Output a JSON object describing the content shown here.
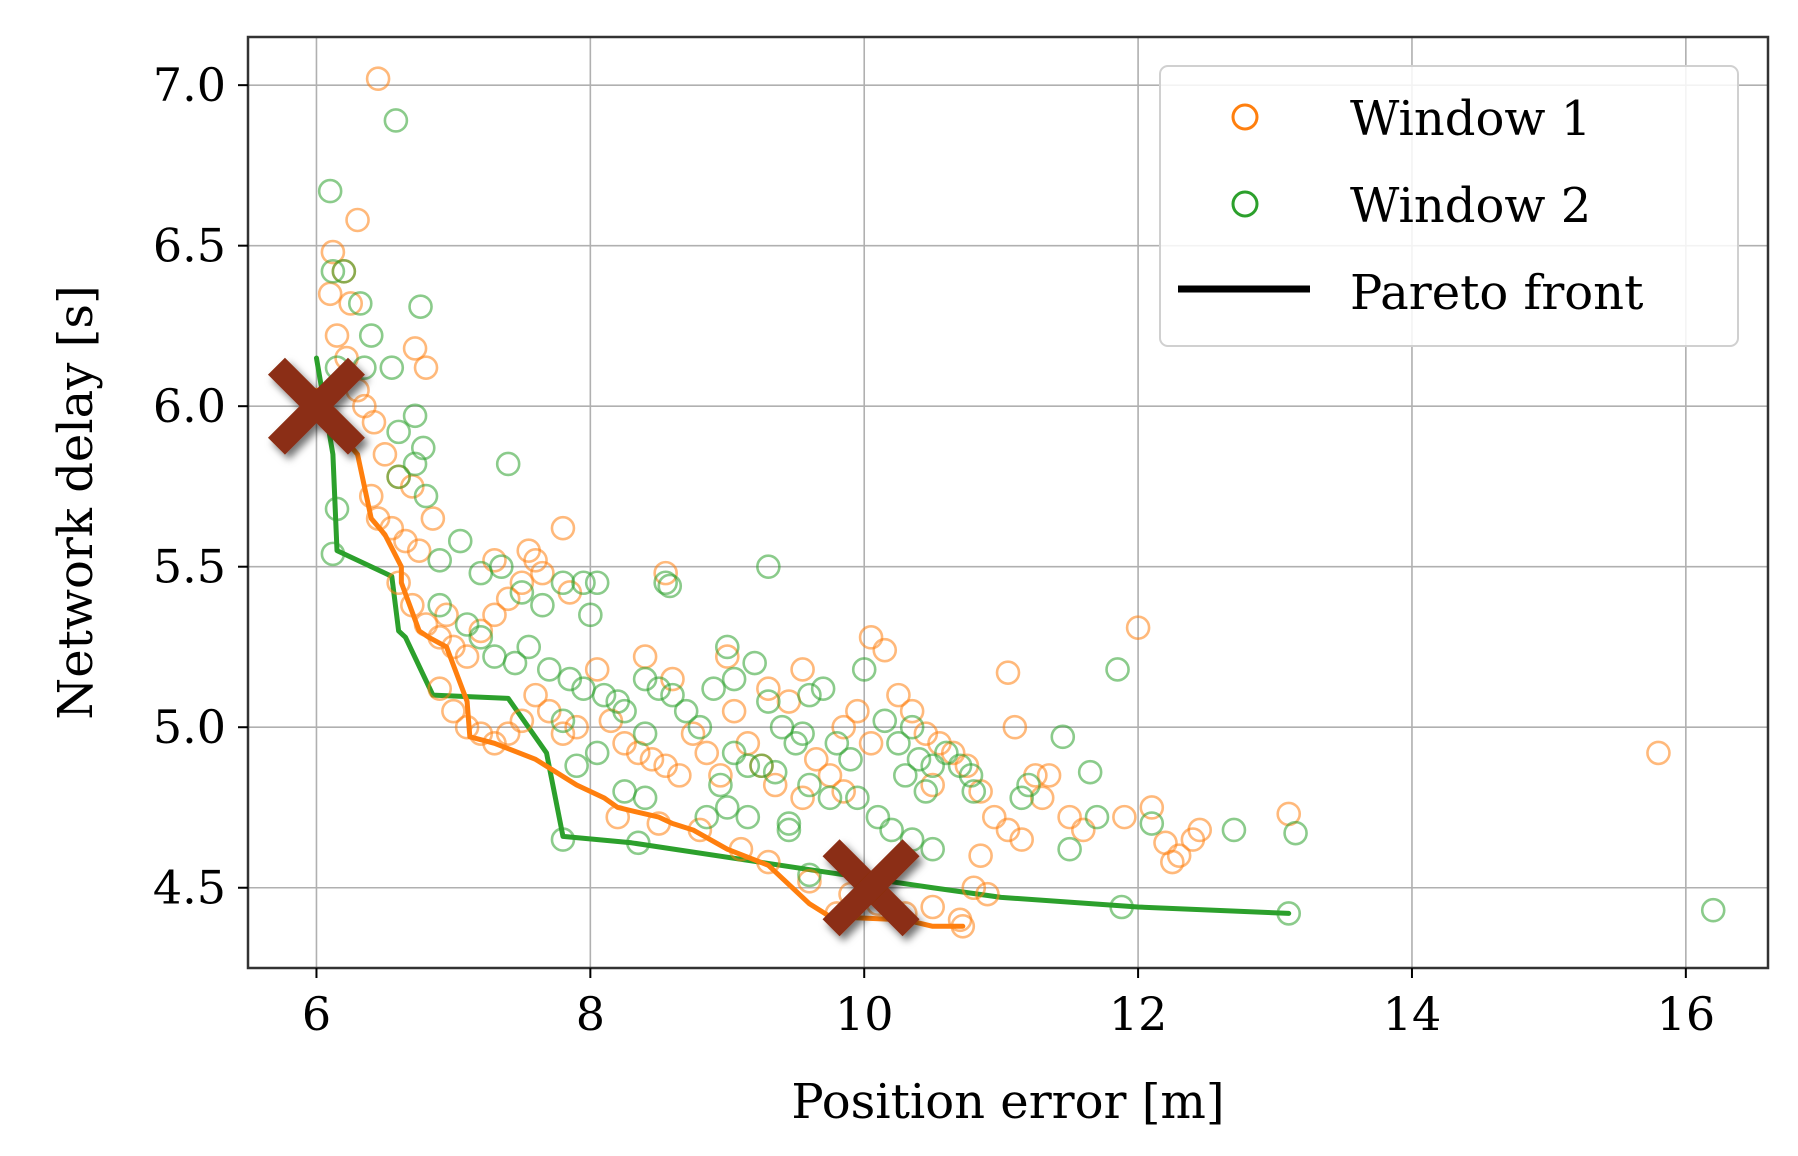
{
  "chart_data": {
    "type": "scatter",
    "xlabel": "Position error [m]",
    "ylabel": "Network delay [s]",
    "xlim": [
      5.5,
      16.6
    ],
    "ylim": [
      4.25,
      7.15
    ],
    "xticks": [
      6,
      8,
      10,
      12,
      14,
      16
    ],
    "yticks": [
      4.5,
      5.0,
      5.5,
      6.0,
      6.5,
      7.0
    ],
    "xtick_labels": [
      "6",
      "8",
      "10",
      "12",
      "14",
      "16"
    ],
    "ytick_labels": [
      "4.5",
      "5.0",
      "5.5",
      "6.0",
      "6.5",
      "7.0"
    ],
    "grid": true,
    "legend_position": "top-right",
    "colors": {
      "window1": "#ff7f0e",
      "window2": "#2ca02c",
      "marker": "#8b2e12",
      "pareto_legend": "#000000"
    },
    "series": [
      {
        "name": "Window 1",
        "kind": "scatter",
        "points": [
          [
            6.45,
            7.02
          ],
          [
            6.3,
            6.58
          ],
          [
            6.12,
            6.48
          ],
          [
            6.2,
            6.42
          ],
          [
            6.25,
            6.32
          ],
          [
            6.1,
            6.35
          ],
          [
            6.15,
            6.22
          ],
          [
            6.22,
            6.15
          ],
          [
            6.3,
            6.05
          ],
          [
            6.35,
            6.0
          ],
          [
            6.42,
            5.95
          ],
          [
            6.5,
            5.85
          ],
          [
            6.6,
            5.78
          ],
          [
            6.7,
            5.75
          ],
          [
            6.72,
            6.18
          ],
          [
            6.8,
            6.12
          ],
          [
            6.4,
            5.72
          ],
          [
            6.45,
            5.65
          ],
          [
            6.55,
            5.62
          ],
          [
            6.65,
            5.58
          ],
          [
            6.75,
            5.55
          ],
          [
            6.85,
            5.65
          ],
          [
            6.6,
            5.45
          ],
          [
            6.7,
            5.38
          ],
          [
            6.8,
            5.32
          ],
          [
            6.9,
            5.28
          ],
          [
            7.0,
            5.25
          ],
          [
            7.1,
            5.22
          ],
          [
            7.2,
            5.3
          ],
          [
            7.3,
            5.35
          ],
          [
            7.4,
            5.4
          ],
          [
            7.5,
            5.45
          ],
          [
            7.55,
            5.55
          ],
          [
            7.65,
            5.48
          ],
          [
            7.8,
            5.62
          ],
          [
            7.85,
            5.42
          ],
          [
            6.9,
            5.12
          ],
          [
            7.0,
            5.05
          ],
          [
            7.1,
            5.0
          ],
          [
            7.2,
            4.98
          ],
          [
            7.3,
            4.95
          ],
          [
            7.4,
            4.98
          ],
          [
            7.5,
            5.02
          ],
          [
            7.6,
            5.1
          ],
          [
            7.7,
            5.05
          ],
          [
            7.8,
            4.98
          ],
          [
            7.9,
            5.0
          ],
          [
            8.05,
            5.18
          ],
          [
            8.15,
            5.02
          ],
          [
            8.25,
            4.95
          ],
          [
            8.35,
            4.92
          ],
          [
            8.45,
            4.9
          ],
          [
            8.55,
            4.88
          ],
          [
            8.65,
            4.85
          ],
          [
            8.75,
            4.98
          ],
          [
            8.85,
            4.92
          ],
          [
            8.95,
            4.85
          ],
          [
            9.05,
            5.05
          ],
          [
            9.15,
            4.95
          ],
          [
            9.25,
            4.88
          ],
          [
            9.35,
            4.82
          ],
          [
            9.45,
            5.08
          ],
          [
            9.55,
            4.78
          ],
          [
            9.65,
            4.9
          ],
          [
            9.75,
            4.85
          ],
          [
            9.85,
            4.8
          ],
          [
            9.95,
            5.05
          ],
          [
            10.05,
            5.28
          ],
          [
            10.15,
            5.24
          ],
          [
            10.25,
            5.1
          ],
          [
            10.35,
            5.05
          ],
          [
            10.45,
            4.98
          ],
          [
            10.55,
            4.95
          ],
          [
            10.65,
            4.92
          ],
          [
            10.75,
            4.88
          ],
          [
            10.85,
            4.8
          ],
          [
            10.95,
            4.72
          ],
          [
            11.05,
            4.68
          ],
          [
            11.15,
            4.65
          ],
          [
            11.25,
            4.85
          ],
          [
            11.05,
            5.17
          ],
          [
            11.1,
            5.0
          ],
          [
            11.5,
            4.72
          ],
          [
            11.6,
            4.68
          ],
          [
            11.9,
            4.72
          ],
          [
            12.0,
            5.31
          ],
          [
            12.1,
            4.75
          ],
          [
            12.3,
            4.6
          ],
          [
            12.4,
            4.65
          ],
          [
            12.45,
            4.68
          ],
          [
            13.1,
            4.73
          ],
          [
            15.8,
            4.92
          ],
          [
            8.55,
            5.48
          ],
          [
            8.2,
            4.72
          ],
          [
            8.5,
            4.7
          ],
          [
            8.8,
            4.68
          ],
          [
            9.1,
            4.62
          ],
          [
            9.3,
            4.58
          ],
          [
            9.6,
            4.52
          ],
          [
            9.8,
            4.42
          ],
          [
            10.1,
            4.45
          ],
          [
            10.3,
            4.42
          ],
          [
            10.5,
            4.44
          ],
          [
            10.7,
            4.4
          ],
          [
            10.8,
            4.5
          ],
          [
            10.85,
            4.6
          ],
          [
            10.9,
            4.48
          ],
          [
            10.72,
            4.38
          ],
          [
            9.9,
            4.48
          ],
          [
            7.3,
            5.52
          ],
          [
            7.6,
            5.52
          ],
          [
            6.95,
            5.35
          ],
          [
            8.4,
            5.22
          ],
          [
            8.6,
            5.15
          ],
          [
            9.0,
            5.22
          ],
          [
            9.3,
            5.12
          ],
          [
            9.55,
            5.18
          ],
          [
            9.85,
            5.0
          ],
          [
            10.05,
            4.95
          ],
          [
            10.5,
            4.82
          ],
          [
            11.3,
            4.78
          ],
          [
            11.35,
            4.85
          ],
          [
            12.25,
            4.58
          ],
          [
            12.2,
            4.64
          ]
        ]
      },
      {
        "name": "Window 2",
        "kind": "scatter",
        "points": [
          [
            6.58,
            6.89
          ],
          [
            6.1,
            6.67
          ],
          [
            6.12,
            6.42
          ],
          [
            6.2,
            6.42
          ],
          [
            6.32,
            6.32
          ],
          [
            6.4,
            6.22
          ],
          [
            6.76,
            6.31
          ],
          [
            6.15,
            6.12
          ],
          [
            6.35,
            6.12
          ],
          [
            6.55,
            6.12
          ],
          [
            6.72,
            5.97
          ],
          [
            6.6,
            5.92
          ],
          [
            6.78,
            5.87
          ],
          [
            6.8,
            5.72
          ],
          [
            6.6,
            5.78
          ],
          [
            6.72,
            5.82
          ],
          [
            6.15,
            5.68
          ],
          [
            6.12,
            5.54
          ],
          [
            7.4,
            5.82
          ],
          [
            6.9,
            5.52
          ],
          [
            7.05,
            5.58
          ],
          [
            7.2,
            5.48
          ],
          [
            7.35,
            5.5
          ],
          [
            7.5,
            5.42
          ],
          [
            7.65,
            5.38
          ],
          [
            7.8,
            5.45
          ],
          [
            7.95,
            5.45
          ],
          [
            8.05,
            5.45
          ],
          [
            8.55,
            5.45
          ],
          [
            8.58,
            5.44
          ],
          [
            6.9,
            5.38
          ],
          [
            7.1,
            5.32
          ],
          [
            7.2,
            5.28
          ],
          [
            7.3,
            5.22
          ],
          [
            7.45,
            5.2
          ],
          [
            7.55,
            5.25
          ],
          [
            7.7,
            5.18
          ],
          [
            7.85,
            5.15
          ],
          [
            7.95,
            5.12
          ],
          [
            8.0,
            5.35
          ],
          [
            8.1,
            5.1
          ],
          [
            8.25,
            5.05
          ],
          [
            8.4,
            5.15
          ],
          [
            8.5,
            5.12
          ],
          [
            8.6,
            5.1
          ],
          [
            8.7,
            5.05
          ],
          [
            8.8,
            5.0
          ],
          [
            8.9,
            5.12
          ],
          [
            9.0,
            5.25
          ],
          [
            9.05,
            5.15
          ],
          [
            9.2,
            5.2
          ],
          [
            9.3,
            5.08
          ],
          [
            9.4,
            5.0
          ],
          [
            9.5,
            4.95
          ],
          [
            9.6,
            5.1
          ],
          [
            9.7,
            5.12
          ],
          [
            9.8,
            4.95
          ],
          [
            9.9,
            4.9
          ],
          [
            10.0,
            5.18
          ],
          [
            10.15,
            5.02
          ],
          [
            10.25,
            4.95
          ],
          [
            10.4,
            4.9
          ],
          [
            10.5,
            4.88
          ],
          [
            10.6,
            4.92
          ],
          [
            10.7,
            4.88
          ],
          [
            10.78,
            4.85
          ],
          [
            10.8,
            4.8
          ],
          [
            10.45,
            4.8
          ],
          [
            10.3,
            4.85
          ],
          [
            7.9,
            4.88
          ],
          [
            8.05,
            4.92
          ],
          [
            8.25,
            4.8
          ],
          [
            8.4,
            4.78
          ],
          [
            8.85,
            4.72
          ],
          [
            9.0,
            4.75
          ],
          [
            9.15,
            4.72
          ],
          [
            9.25,
            4.88
          ],
          [
            9.35,
            4.86
          ],
          [
            9.45,
            4.7
          ],
          [
            9.45,
            4.68
          ],
          [
            9.6,
            4.82
          ],
          [
            9.75,
            4.78
          ],
          [
            9.95,
            4.78
          ],
          [
            10.1,
            4.72
          ],
          [
            10.2,
            4.68
          ],
          [
            10.35,
            4.65
          ],
          [
            10.5,
            4.62
          ],
          [
            11.15,
            4.78
          ],
          [
            11.2,
            4.82
          ],
          [
            11.45,
            4.97
          ],
          [
            11.5,
            4.62
          ],
          [
            11.65,
            4.86
          ],
          [
            11.7,
            4.72
          ],
          [
            11.85,
            5.18
          ],
          [
            11.88,
            4.44
          ],
          [
            12.1,
            4.7
          ],
          [
            12.7,
            4.68
          ],
          [
            13.1,
            4.42
          ],
          [
            13.15,
            4.67
          ],
          [
            16.2,
            4.43
          ],
          [
            7.8,
            4.65
          ],
          [
            8.35,
            4.64
          ],
          [
            9.6,
            4.54
          ],
          [
            9.3,
            5.5
          ],
          [
            9.05,
            4.92
          ],
          [
            8.95,
            4.82
          ],
          [
            7.8,
            5.02
          ],
          [
            8.2,
            5.08
          ],
          [
            8.4,
            4.98
          ],
          [
            9.15,
            4.88
          ],
          [
            9.55,
            4.98
          ],
          [
            10.35,
            5.0
          ]
        ]
      },
      {
        "name": "Pareto front",
        "kind": "line",
        "color": "#000000",
        "front_window1": [
          [
            6.0,
            6.05
          ],
          [
            6.1,
            5.95
          ],
          [
            6.3,
            5.85
          ],
          [
            6.4,
            5.65
          ],
          [
            6.5,
            5.6
          ],
          [
            6.62,
            5.5
          ],
          [
            6.62,
            5.45
          ],
          [
            6.75,
            5.3
          ],
          [
            6.82,
            5.28
          ],
          [
            6.95,
            5.25
          ],
          [
            7.1,
            5.08
          ],
          [
            7.12,
            4.97
          ],
          [
            7.3,
            4.95
          ],
          [
            7.6,
            4.9
          ],
          [
            7.9,
            4.82
          ],
          [
            8.1,
            4.78
          ],
          [
            8.2,
            4.75
          ],
          [
            8.5,
            4.72
          ],
          [
            8.6,
            4.7
          ],
          [
            8.75,
            4.68
          ],
          [
            9.0,
            4.62
          ],
          [
            9.3,
            4.57
          ],
          [
            9.6,
            4.45
          ],
          [
            9.75,
            4.41
          ],
          [
            10.3,
            4.4
          ],
          [
            10.5,
            4.38
          ],
          [
            10.72,
            4.38
          ]
        ],
        "front_window2": [
          [
            6.0,
            6.15
          ],
          [
            6.12,
            5.85
          ],
          [
            6.15,
            5.55
          ],
          [
            6.55,
            5.47
          ],
          [
            6.6,
            5.3
          ],
          [
            6.65,
            5.28
          ],
          [
            6.85,
            5.1
          ],
          [
            7.4,
            5.09
          ],
          [
            7.68,
            4.92
          ],
          [
            7.8,
            4.66
          ],
          [
            8.3,
            4.64
          ],
          [
            9.7,
            4.55
          ],
          [
            10.5,
            4.5
          ],
          [
            11.0,
            4.47
          ],
          [
            12.0,
            4.44
          ],
          [
            13.1,
            4.42
          ]
        ]
      }
    ],
    "highlight_markers": [
      {
        "symbol": "x",
        "x": 6.0,
        "y": 6.0
      },
      {
        "symbol": "x",
        "x": 10.05,
        "y": 4.5
      }
    ]
  }
}
